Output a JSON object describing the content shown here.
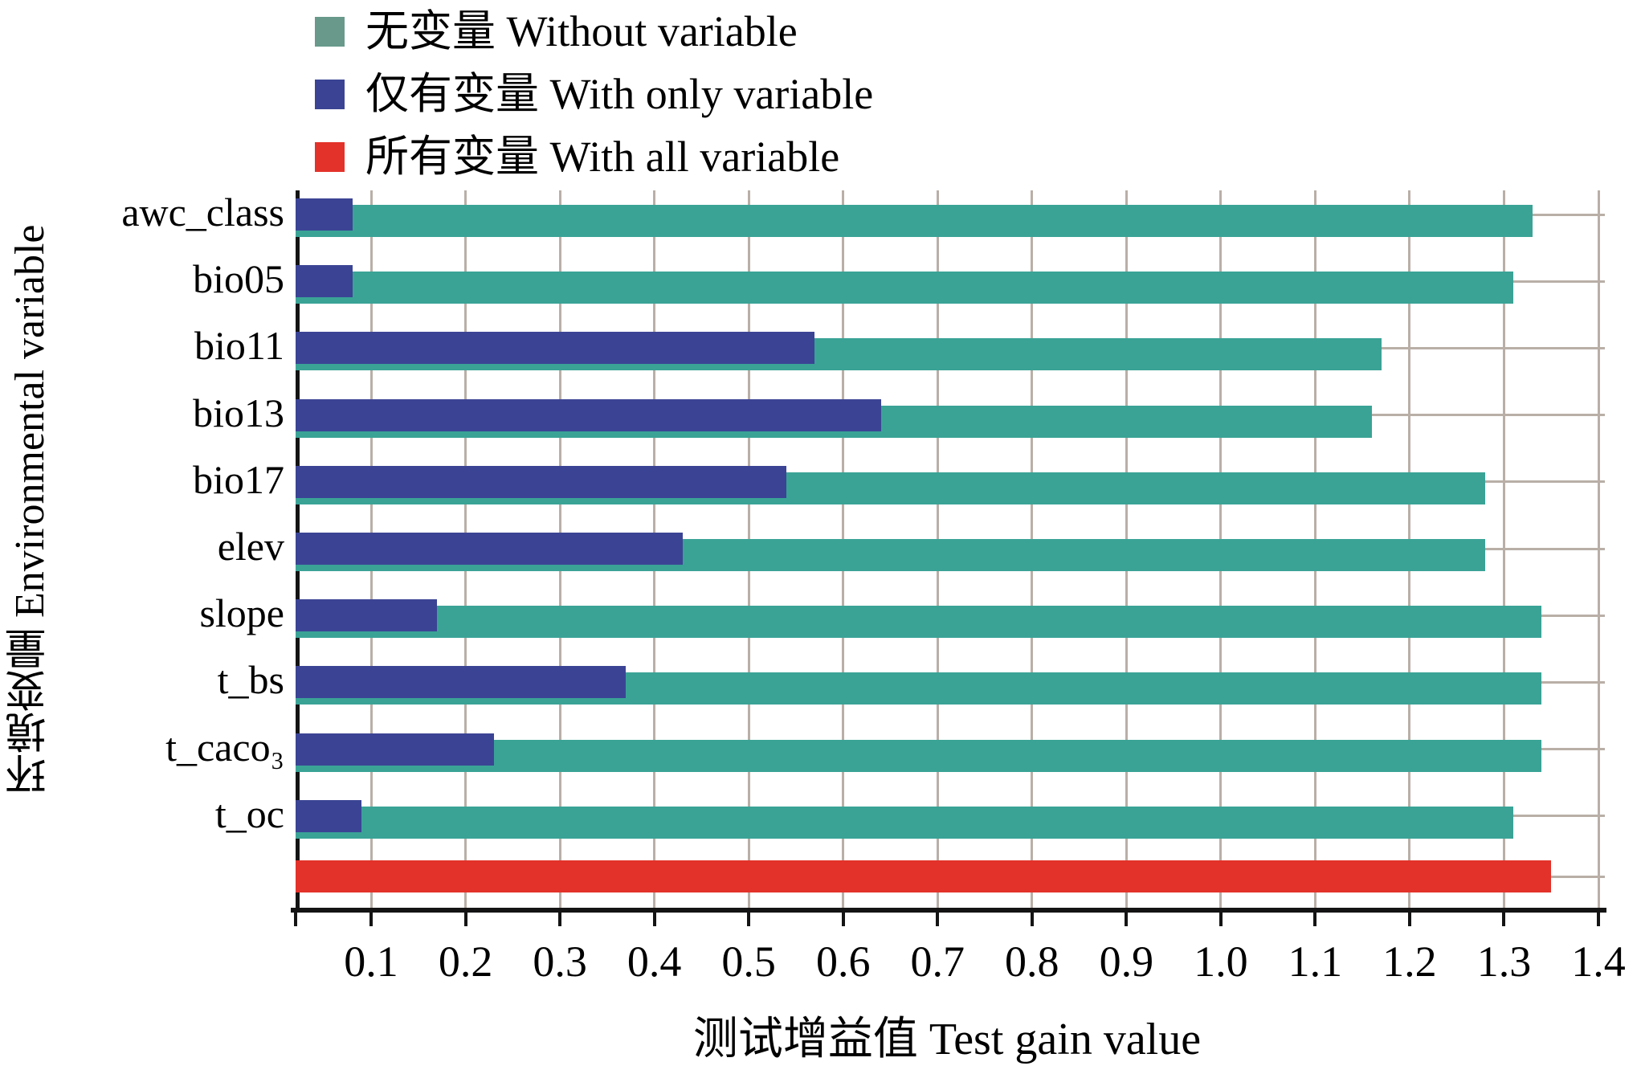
{
  "legend": {
    "items": [
      {
        "name": "without-variable",
        "label": "无变量 Without variable",
        "color": "#68998b"
      },
      {
        "name": "with-only-variable",
        "label": "仅有变量 With only variable",
        "color": "#3b4494"
      },
      {
        "name": "with-all-variable",
        "label": "所有变量 With all variable",
        "color": "#e3322a"
      }
    ]
  },
  "chart_data": {
    "type": "bar",
    "orientation": "horizontal",
    "title": "",
    "xlabel": "测试增益值 Test gain value",
    "ylabel": "环境变量 Environmental variable",
    "categories": [
      "awc_class",
      "bio05",
      "bio11",
      "bio13",
      "bio17",
      "elev",
      "slope",
      "t_bs",
      "t_caco₃",
      "t_oc"
    ],
    "series": [
      {
        "name": "无变量 Without variable",
        "color": "#3aa396",
        "values": [
          1.33,
          1.31,
          1.17,
          1.16,
          1.28,
          1.28,
          1.34,
          1.34,
          1.34,
          1.31
        ]
      },
      {
        "name": "仅有变量 With only variable",
        "color": "#3b4494",
        "values": [
          0.08,
          0.08,
          0.57,
          0.64,
          0.54,
          0.43,
          0.17,
          0.37,
          0.23,
          0.09
        ]
      }
    ],
    "all_variables_bar": {
      "name": "所有变量 With all variable",
      "color": "#e3322a",
      "value": 1.35
    },
    "x_ticks": [
      "0.1",
      "0.2",
      "0.3",
      "0.4",
      "0.5",
      "0.6",
      "0.7",
      "0.8",
      "0.9",
      "1.0",
      "1.1",
      "1.2",
      "1.3",
      "1.4"
    ],
    "xlim": [
      0.02,
      1.4
    ],
    "grid": true,
    "gridline_color": "#b9afa7",
    "axis_color": "#141414",
    "legend_position": "top-left"
  }
}
